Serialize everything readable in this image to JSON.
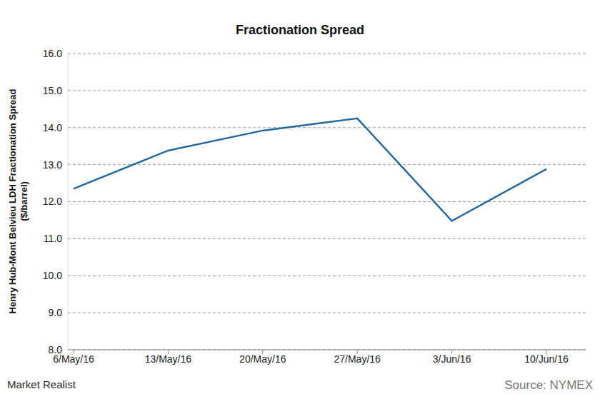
{
  "chart_data": {
    "type": "line",
    "title": "Fractionation Spread",
    "y_label": "Henry Hub-Mont Belvieu LDH Fractionation Spread",
    "y_label_unit": "($/barrel)",
    "source": "Source: NYMEX",
    "credit": "Market Realist",
    "categories": [
      "6/May/16",
      "13/May/16",
      "20/May/16",
      "27/May/16",
      "3/Jun/16",
      "10/Jun/16"
    ],
    "values": [
      12.35,
      13.38,
      13.92,
      14.25,
      11.48,
      12.88
    ],
    "color": "#2467a0",
    "ylim": [
      8,
      16
    ],
    "yticks": [
      {
        "value": 8,
        "label": "8.0"
      },
      {
        "value": 9,
        "label": "9.0"
      },
      {
        "value": 10,
        "label": "10.0"
      },
      {
        "value": 11,
        "label": "11.0"
      },
      {
        "value": 12,
        "label": "12.0"
      },
      {
        "value": 13,
        "label": "13.0"
      },
      {
        "value": 14,
        "label": "14.0"
      },
      {
        "value": 15,
        "label": "15.0"
      },
      {
        "value": 16,
        "label": "16.0"
      }
    ],
    "grid": true
  }
}
